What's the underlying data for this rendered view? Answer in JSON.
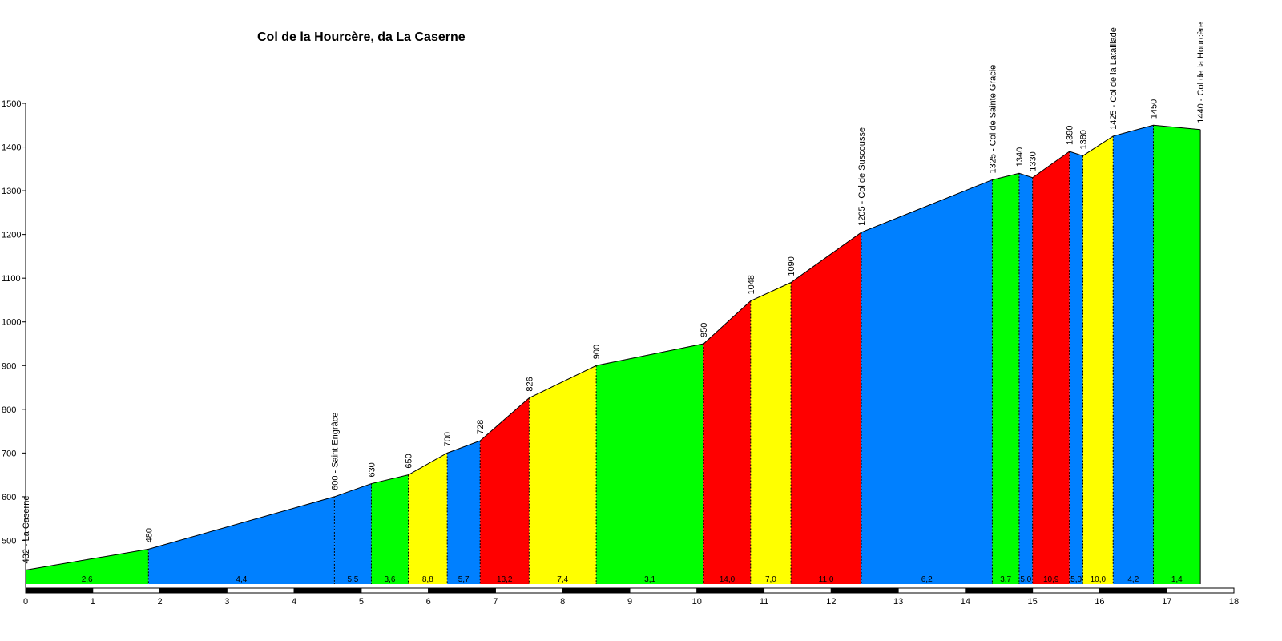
{
  "chart_data": {
    "type": "area",
    "title": "Col de la Hourcère, da La Caserne",
    "xlabel": "",
    "ylabel": "",
    "xlim": [
      0,
      18
    ],
    "ylim": [
      400,
      1500
    ],
    "x_ticks": [
      0,
      1,
      2,
      3,
      4,
      5,
      6,
      7,
      8,
      9,
      10,
      11,
      12,
      13,
      14,
      15,
      16,
      17,
      18
    ],
    "y_ticks": [
      500,
      600,
      700,
      800,
      900,
      1000,
      1100,
      1200,
      1300,
      1400,
      1500
    ],
    "grid": false,
    "legend": "none",
    "colors": {
      "green": "#00ff00",
      "blue": "#0080ff",
      "yellow": "#ffff00",
      "red": "#ff0000"
    },
    "points": [
      {
        "x": 0,
        "y": 432,
        "label": "432 - La Caserne"
      },
      {
        "x": 1.83,
        "y": 480,
        "label": "480"
      },
      {
        "x": 4.6,
        "y": 600,
        "label": "600 - Saint Engrâce"
      },
      {
        "x": 5.15,
        "y": 630,
        "label": "630"
      },
      {
        "x": 5.7,
        "y": 650,
        "label": "650"
      },
      {
        "x": 6.28,
        "y": 700,
        "label": "700"
      },
      {
        "x": 6.77,
        "y": 728,
        "label": "728"
      },
      {
        "x": 7.5,
        "y": 826,
        "label": "826"
      },
      {
        "x": 8.5,
        "y": 900,
        "label": "900"
      },
      {
        "x": 10.1,
        "y": 950,
        "label": "950"
      },
      {
        "x": 10.8,
        "y": 1048,
        "label": "1048"
      },
      {
        "x": 11.4,
        "y": 1090,
        "label": "1090"
      },
      {
        "x": 12.45,
        "y": 1205,
        "label": "1205 - Col de Suscousse"
      },
      {
        "x": 14.4,
        "y": 1325,
        "label": "1325 - Col de Sainte Gracie"
      },
      {
        "x": 14.8,
        "y": 1340,
        "label": "1340"
      },
      {
        "x": 15.0,
        "y": 1330,
        "label": "1330"
      },
      {
        "x": 15.55,
        "y": 1390,
        "label": "1390"
      },
      {
        "x": 15.75,
        "y": 1380,
        "label": "1380"
      },
      {
        "x": 16.2,
        "y": 1425,
        "label": "1425 - Col de la Lataillade"
      },
      {
        "x": 16.8,
        "y": 1450,
        "label": "1450"
      },
      {
        "x": 17.5,
        "y": 1440,
        "label": "1440 - Col de la Hourcère"
      }
    ],
    "segments": [
      {
        "gradient": "2,6",
        "color": "green"
      },
      {
        "gradient": "4,4",
        "color": "blue"
      },
      {
        "gradient": "5,5",
        "color": "blue"
      },
      {
        "gradient": "3,6",
        "color": "green"
      },
      {
        "gradient": "8,8",
        "color": "yellow"
      },
      {
        "gradient": "5,7",
        "color": "blue"
      },
      {
        "gradient": "13,2",
        "color": "red"
      },
      {
        "gradient": "7,4",
        "color": "yellow"
      },
      {
        "gradient": "3,1",
        "color": "green"
      },
      {
        "gradient": "14,0",
        "color": "red"
      },
      {
        "gradient": "7,0",
        "color": "yellow"
      },
      {
        "gradient": "11,0",
        "color": "red"
      },
      {
        "gradient": "6,2",
        "color": "blue"
      },
      {
        "gradient": "3,7",
        "color": "green"
      },
      {
        "gradient": "5,0",
        "color": "blue"
      },
      {
        "gradient": "10,9",
        "color": "red"
      },
      {
        "gradient": "5,0",
        "color": "blue"
      },
      {
        "gradient": "10,0",
        "color": "yellow"
      },
      {
        "gradient": "4,2",
        "color": "blue"
      },
      {
        "gradient": "1,4",
        "color": "green"
      }
    ]
  }
}
